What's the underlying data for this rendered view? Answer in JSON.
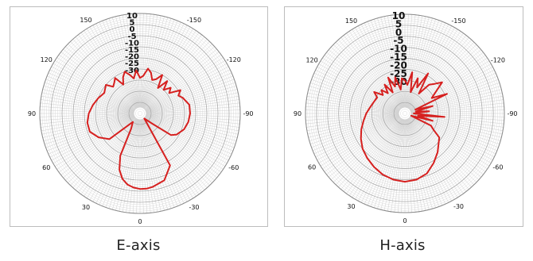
{
  "chart_data": [
    {
      "type": "polar-line",
      "caption": "E-axis",
      "radial_labels": [
        "10",
        "5",
        "0",
        "-5",
        "-10",
        "-15",
        "-20",
        "-25",
        "-30"
      ],
      "rlim": [
        -35,
        10
      ],
      "angular_labels": [
        "0",
        "30",
        "60",
        "90",
        "120",
        "150",
        "-150",
        "-120",
        "-90",
        "-60",
        "-30"
      ],
      "angle_direction": "clockwise from bottom for negative angles; 0 at bottom, 90 at left, -90 at right",
      "grid": true,
      "line_color": "#d6201f",
      "series": [
        {
          "angles_deg": [
            0,
            5,
            10,
            15,
            20,
            25,
            30,
            40,
            50,
            60,
            70,
            80,
            90,
            100,
            110,
            120,
            130,
            135,
            140,
            145,
            150,
            155,
            160,
            165,
            170,
            175,
            180,
            -175,
            -170,
            -165,
            -160,
            -155,
            -150,
            -145,
            -140,
            -135,
            -130,
            -125,
            -120,
            -115,
            -110,
            -100,
            -90,
            -80,
            -70,
            -60,
            -55,
            -50,
            -40,
            -30,
            -20,
            -10,
            -5
          ],
          "values_db": [
            -1,
            -1.5,
            -2.5,
            -4.5,
            -8,
            -14,
            -27,
            -30,
            -17,
            -13.5,
            -11,
            -11,
            -12,
            -13.5,
            -15,
            -16.5,
            -15,
            -18,
            -17,
            -15.5,
            -20,
            -17,
            -15,
            -17,
            -19,
            -15.5,
            -19,
            -18,
            -14.5,
            -16,
            -19,
            -18,
            -15,
            -21,
            -16,
            -20,
            -17,
            -19,
            -14,
            -16,
            -14.5,
            -12.5,
            -12.5,
            -13,
            -14,
            -16,
            -18,
            -28,
            -32,
            -8,
            -3,
            -1.5,
            -1
          ]
        }
      ]
    },
    {
      "type": "polar-line",
      "caption": "H-axis",
      "radial_labels": [
        "10",
        "5",
        "0",
        "-5",
        "-10",
        "-15",
        "-20",
        "-25",
        "-30"
      ],
      "rlim": [
        -35,
        10
      ],
      "angular_labels": [
        "0",
        "30",
        "60",
        "90",
        "120",
        "150",
        "-150",
        "-120",
        "-90",
        "-60",
        "-30"
      ],
      "angle_direction": "clockwise from bottom for negative angles; 0 at bottom, 90 at left, -90 at right",
      "grid": true,
      "line_color": "#d6201f",
      "series": [
        {
          "angles_deg": [
            0,
            10,
            20,
            30,
            40,
            50,
            60,
            70,
            80,
            90,
            100,
            110,
            120,
            125,
            130,
            135,
            140,
            145,
            150,
            155,
            160,
            165,
            170,
            175,
            180,
            -175,
            -170,
            -165,
            -160,
            -155,
            -150,
            -145,
            -140,
            -135,
            -130,
            -125,
            -120,
            -115,
            -110,
            -105,
            -100,
            -95,
            -90,
            -85,
            -80,
            -75,
            -70,
            -65,
            -60,
            -55,
            -50,
            -40,
            -30,
            -20,
            -10
          ],
          "values_db": [
            -4,
            -4.5,
            -5.5,
            -7,
            -8.5,
            -10,
            -12,
            -14,
            -16,
            -17.5,
            -19,
            -20,
            -20.5,
            -18,
            -22,
            -20,
            -23,
            -19,
            -24,
            -17,
            -22,
            -18,
            -24,
            -19,
            -20,
            -22,
            -16,
            -25,
            -18,
            -22,
            -14,
            -24,
            -18,
            -16,
            -13,
            -18,
            -21,
            -14,
            -30,
            -22,
            -30,
            -24,
            -31,
            -17,
            -29,
            -22,
            -32,
            -22,
            -20,
            -16,
            -15,
            -12,
            -9,
            -6,
            -4.5
          ]
        }
      ]
    }
  ]
}
